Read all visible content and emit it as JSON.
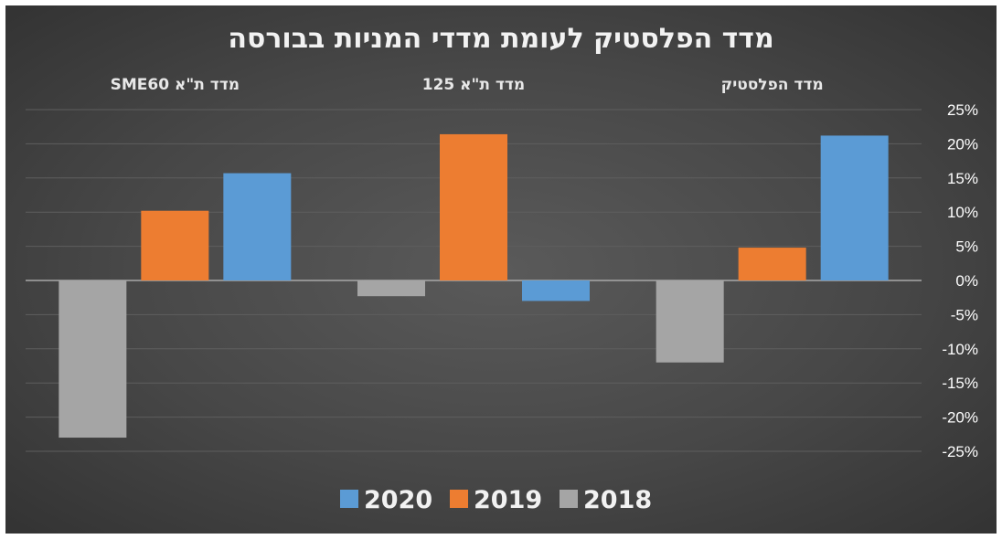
{
  "chart_data": {
    "type": "bar",
    "title": "מדד הפלסטיק לעומת מדדי המניות בבורסה",
    "categories": [
      "מדד ת\"א SME60",
      "מדד ת\"א 125",
      "מדד הפלסטיק"
    ],
    "series": [
      {
        "name": "2018",
        "color": "#a5a5a5",
        "values": [
          -23,
          -2.3,
          -12
        ]
      },
      {
        "name": "2019",
        "color": "#ed7d31",
        "values": [
          10.2,
          21.4,
          4.8
        ]
      },
      {
        "name": "2020",
        "color": "#5b9bd5",
        "values": [
          15.7,
          -3,
          21.2
        ]
      }
    ],
    "y_ticks": [
      "25%",
      "20%",
      "15%",
      "10%",
      "5%",
      "0%",
      "-5%",
      "-10%",
      "-15%",
      "-20%",
      "-25%"
    ],
    "ylim": [
      -25,
      25
    ],
    "grid": true,
    "y_axis_position": "right",
    "category_labels_position": "top",
    "legend_position": "bottom",
    "legend_order": [
      "2020",
      "2019",
      "2018"
    ]
  }
}
